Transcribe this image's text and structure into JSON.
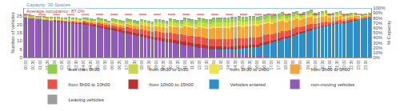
{
  "chart_data": {
    "type": "bar",
    "stacked": true,
    "grid": false,
    "legend": "bottom",
    "y_label": "Number of vehicles",
    "y2_label": "% Capacity",
    "ylim": [
      0,
      30
    ],
    "yticks": [
      0,
      5,
      10,
      15,
      20,
      25
    ],
    "y2lim": [
      0,
      100
    ],
    "y2ticks": [
      {
        "value": 0,
        "label": "0%"
      },
      {
        "value": 10,
        "label": "10%"
      },
      {
        "value": 20,
        "label": "20%"
      },
      {
        "value": 30,
        "label": "30%"
      },
      {
        "value": 40,
        "label": "40%"
      },
      {
        "value": 50,
        "label": "50%"
      },
      {
        "value": 60,
        "label": "60%"
      },
      {
        "value": 70,
        "label": "70%"
      },
      {
        "value": 80,
        "label": "80%"
      },
      {
        "value": 90,
        "label": "90%"
      },
      {
        "value": 100,
        "label": "100%"
      }
    ],
    "annotations": [
      {
        "text": "Capacity: 30 Spaces",
        "y": 30,
        "axis": "y",
        "color": "#4a90d9",
        "line_style": "solid"
      },
      {
        "text": "Average occupancy: 87.0%",
        "y": 87,
        "axis": "y2",
        "color": "#d9342b",
        "line_style": "dashed"
      }
    ],
    "categories": [
      "00:00",
      null,
      "00:30",
      null,
      "01:00",
      null,
      "01:30",
      null,
      "02:00",
      null,
      "02:30",
      null,
      "03:00",
      null,
      "03:30",
      null,
      "04:00",
      null,
      "04:30",
      null,
      "05:00",
      null,
      "05:30",
      null,
      "06:00",
      null,
      "06:30",
      null,
      "07:00",
      null,
      "07:30",
      null,
      "08:00",
      null,
      "08:30",
      null,
      "09:00",
      null,
      "09:30",
      null,
      "10:00",
      null,
      "10:30",
      null,
      "11:00",
      null,
      "11:30",
      null,
      "12:00",
      null,
      "12:30",
      null,
      "13:00",
      null,
      "13:30",
      null,
      "14:00",
      null,
      "14:30",
      null,
      "15:00",
      null,
      "15:30",
      null,
      "16:00",
      null,
      "16:30",
      null,
      "17:00",
      null,
      "17:30",
      null,
      "18:00",
      null,
      "18:30",
      null,
      "19:00",
      null,
      "19:30",
      null,
      "20:00",
      null,
      "20:30",
      null,
      "21:00",
      null,
      "21:30",
      null,
      "22:00",
      null,
      "22:30",
      null,
      "23:00",
      null,
      "23:30",
      null
    ],
    "series": [
      {
        "name": "non-moving vehicles",
        "color": "#8e5bb5",
        "values": [
          24,
          23.8,
          23.6,
          23.3,
          23,
          22.8,
          22.6,
          22.3,
          22,
          21.8,
          21.5,
          21.3,
          21,
          20.8,
          20.5,
          20.3,
          20,
          19.6,
          19.2,
          18.9,
          18.5,
          18,
          17.5,
          17,
          16.5,
          16,
          15.5,
          15,
          14.5,
          14,
          13.5,
          13,
          12.5,
          12,
          11.5,
          11,
          10.5,
          10.2,
          9.8,
          9.4,
          9,
          8.6,
          8.2,
          7.9,
          7.5,
          7.1,
          6.8,
          6.4,
          6,
          5.6,
          5.2,
          4.9,
          4.5,
          4.1,
          3.8,
          3.4,
          3,
          2.8,
          2.5,
          2.3,
          2,
          1.8,
          1.5,
          1.3,
          1,
          0.9,
          0.8,
          0.6,
          0.5,
          0.4,
          0.2,
          0.1,
          0,
          0,
          0,
          0,
          0,
          0,
          0,
          0,
          0,
          0,
          0,
          0,
          0,
          0,
          0,
          0,
          0,
          0,
          0,
          0,
          0,
          0,
          0,
          0
        ]
      },
      {
        "name": "Vehicles entered",
        "color": "#2e8fc8",
        "values": [
          0,
          0,
          0,
          0,
          0,
          0,
          0,
          0,
          0,
          0,
          0,
          0,
          0,
          0,
          0,
          0,
          0,
          0,
          0,
          0,
          0,
          0,
          0,
          0,
          0,
          0,
          0,
          0,
          0,
          0,
          0,
          0,
          0,
          0,
          0,
          0,
          0,
          0,
          0,
          0,
          0,
          0,
          0,
          0,
          0,
          0,
          0,
          0,
          0,
          0,
          0,
          0,
          0.2,
          0.5,
          0.8,
          1.2,
          1.6,
          2,
          2.5,
          3,
          3.5,
          4,
          4.5,
          5,
          5.5,
          6.2,
          7,
          7.8,
          8.5,
          9.2,
          10,
          10.8,
          11.5,
          12.2,
          13,
          13.8,
          14.5,
          15.2,
          16,
          16.6,
          17.2,
          17.8,
          18.3,
          18.8,
          19.3,
          19.8,
          20.2,
          20.6,
          21,
          21.5,
          22,
          22.4,
          22.8,
          23.3,
          23.8,
          24.3
        ]
      },
      {
        "name": "from 10h00 to 15h00",
        "color": "#b8322f",
        "values": [
          0,
          0,
          0,
          0,
          0,
          0,
          0,
          0,
          0.3,
          0.3,
          0.3,
          0.3,
          0.5,
          0.5,
          0.5,
          0.5,
          0.8,
          0.8,
          0.8,
          0.8,
          1,
          1,
          1,
          1,
          1.2,
          1.2,
          1.2,
          1.2,
          1.4,
          1.4,
          1.4,
          1.4,
          1.6,
          1.6,
          1.6,
          1.6,
          1.8,
          1.8,
          1.8,
          1.8,
          2,
          2,
          2,
          2,
          2,
          2,
          2,
          2,
          2,
          2,
          2,
          2,
          2,
          2,
          2,
          2,
          1.8,
          1.8,
          1.8,
          1.8,
          1.6,
          1.6,
          1.6,
          1.6,
          1.4,
          1.4,
          1.4,
          1.4,
          1.2,
          1.2,
          1.2,
          1.2,
          1,
          1,
          1,
          1,
          0.8,
          0.8,
          0.8,
          0.8,
          0.6,
          0.6,
          0.6,
          0.6,
          0.4,
          0.4,
          0.4,
          0.4,
          0.2,
          0.2,
          0.2,
          0.2,
          0.1,
          0.1,
          0.1,
          0.1
        ]
      },
      {
        "name": "from 5h00 to 10h00",
        "color": "#e8534a",
        "values": [
          0,
          0,
          0,
          0,
          0,
          0,
          0,
          0,
          0.3,
          0.3,
          0.3,
          0.3,
          0.5,
          0.5,
          0.5,
          0.5,
          0.8,
          0.8,
          0.8,
          0.8,
          1.2,
          1.2,
          1.2,
          1.2,
          1.8,
          1.8,
          1.8,
          1.8,
          2.4,
          2.4,
          2.4,
          2.4,
          3,
          3,
          3,
          3,
          3.6,
          3.6,
          3.6,
          3.6,
          4,
          4,
          4,
          4,
          4.2,
          4.2,
          4.2,
          4.2,
          4.4,
          4.4,
          4.4,
          4.4,
          4.6,
          4.6,
          4.6,
          4.6,
          4.6,
          4.6,
          4.6,
          4.6,
          4.4,
          4.4,
          4.4,
          4.4,
          4.2,
          4.2,
          4.2,
          4.2,
          3.8,
          3.8,
          3.8,
          3.8,
          3.4,
          3.4,
          3.4,
          3.4,
          3,
          3,
          3,
          3,
          2.4,
          2.4,
          2.4,
          2.4,
          1.8,
          1.8,
          1.8,
          1.8,
          1.2,
          1.2,
          1.2,
          1.2,
          0.5,
          0.5,
          0.5,
          0.5
        ]
      },
      {
        "name": "from 2h00 to 5h00",
        "color": "#f2a33a",
        "values": [
          0.5,
          0.5,
          0.5,
          0.5,
          0.5,
          0.5,
          0.5,
          0.5,
          0.5,
          0.5,
          0.5,
          0.5,
          0.7,
          0.7,
          0.7,
          0.7,
          0.8,
          0.8,
          0.8,
          0.8,
          1,
          1,
          1,
          1,
          1.5,
          1.5,
          1.5,
          1.5,
          2,
          2,
          2,
          2,
          2.6,
          2.6,
          2.6,
          2.6,
          3.2,
          3.2,
          3.2,
          3.2,
          4,
          4,
          4,
          4,
          5,
          5,
          5,
          5,
          6,
          6,
          6,
          6,
          6.5,
          6.5,
          6.5,
          6.5,
          7,
          7,
          7,
          7,
          7,
          7,
          7,
          7,
          7,
          7,
          7,
          7,
          6.5,
          6.5,
          6.5,
          6.5,
          5.5,
          5.5,
          5.5,
          5.5,
          4.5,
          4.5,
          4.5,
          4.5,
          3.5,
          3.5,
          3.5,
          3.5,
          2.5,
          2.5,
          2.5,
          2.5,
          1.5,
          1.5,
          1.5,
          1.5,
          0.6,
          0.6,
          0.6,
          0.6
        ]
      },
      {
        "name": "from 1h30 to 2h00",
        "color": "#f3e14a",
        "values": [
          0,
          0,
          0,
          0,
          0.3,
          0.3,
          0.3,
          0.3,
          0.2,
          0.2,
          0.2,
          0.2,
          0.2,
          0.2,
          0.2,
          0.2,
          0.3,
          0.3,
          0.3,
          0.3,
          0.3,
          0.3,
          0.3,
          0.3,
          0.4,
          0.4,
          0.4,
          0.4,
          0.5,
          0.5,
          0.5,
          0.5,
          0.6,
          0.6,
          0.6,
          0.6,
          0.7,
          0.7,
          0.7,
          0.7,
          0.8,
          0.8,
          0.8,
          0.8,
          0.9,
          0.9,
          0.9,
          0.9,
          1,
          1,
          1,
          1,
          1,
          1,
          1,
          1,
          1,
          1,
          1,
          1,
          1,
          1,
          1,
          1,
          1,
          1,
          1,
          1,
          0.9,
          0.9,
          0.9,
          0.9,
          0.8,
          0.8,
          0.8,
          0.8,
          0.7,
          0.7,
          0.7,
          0.7,
          0.6,
          0.6,
          0.6,
          0.6,
          0.5,
          0.5,
          0.5,
          0.5,
          0.3,
          0.3,
          0.3,
          0.3,
          0.2,
          0.2,
          0.2,
          0.2
        ]
      },
      {
        "name": "from 0h30 to 1h30",
        "color": "#c5d94a",
        "values": [
          0.5,
          0.5,
          0.5,
          0.5,
          0.5,
          0.5,
          0.5,
          0.5,
          0.5,
          0.5,
          0.5,
          0.5,
          0.6,
          0.6,
          0.6,
          0.6,
          0.6,
          0.6,
          0.6,
          0.6,
          0.8,
          0.8,
          0.8,
          0.8,
          1,
          1,
          1,
          1,
          1.2,
          1.2,
          1.2,
          1.2,
          1.4,
          1.4,
          1.4,
          1.4,
          1.6,
          1.6,
          1.6,
          1.6,
          1.8,
          1.8,
          1.8,
          1.8,
          2,
          2,
          2,
          2,
          2.2,
          2.2,
          2.2,
          2.2,
          2.4,
          2.4,
          2.4,
          2.4,
          2.4,
          2.4,
          2.4,
          2.4,
          2.2,
          2.2,
          2.2,
          2.2,
          2,
          2,
          2,
          2,
          1.8,
          1.8,
          1.8,
          1.8,
          1.6,
          1.6,
          1.6,
          1.6,
          1.3,
          1.3,
          1.3,
          1.3,
          1,
          1,
          1,
          1,
          0.8,
          0.8,
          0.8,
          0.8,
          0.6,
          0.6,
          0.6,
          0.6,
          0.4,
          0.4,
          0.4,
          0.4
        ]
      },
      {
        "name": "less than 0h30",
        "color": "#8fcf4f",
        "values": [
          0.5,
          0.5,
          0.5,
          0.5,
          0.5,
          0.5,
          0.5,
          0.5,
          0.5,
          0.5,
          0.5,
          0.5,
          0.5,
          0.5,
          0.5,
          0.5,
          0.6,
          0.6,
          0.6,
          0.6,
          0.7,
          0.7,
          0.7,
          0.7,
          0.8,
          0.8,
          0.8,
          0.8,
          1,
          1,
          1,
          1,
          1.1,
          1.1,
          1.1,
          1.1,
          1.2,
          1.2,
          1.2,
          1.2,
          1.4,
          1.4,
          1.4,
          1.4,
          1.6,
          1.6,
          1.6,
          1.6,
          1.8,
          1.8,
          1.8,
          1.8,
          2,
          2,
          2,
          2,
          2,
          2,
          2,
          2,
          2,
          2,
          2,
          2,
          1.8,
          1.8,
          1.8,
          1.8,
          1.6,
          1.6,
          1.6,
          1.6,
          1.4,
          1.4,
          1.4,
          1.4,
          1.2,
          1.2,
          1.2,
          1.2,
          1,
          1,
          1,
          1,
          0.8,
          0.8,
          0.8,
          0.8,
          0.6,
          0.6,
          0.6,
          0.6,
          0.4,
          0.4,
          0.4,
          0.4
        ]
      },
      {
        "name": "Leaving vehicles",
        "color": "#9e9e9e",
        "values": [
          0.5,
          0.5,
          0.5,
          0.5,
          0.5,
          0.5,
          0.5,
          0.5,
          0.5,
          0.5,
          0.5,
          0.5,
          0.5,
          0.5,
          0.5,
          0.5,
          0.5,
          0.5,
          0.5,
          0.5,
          0.5,
          0.5,
          0.5,
          0.5,
          0.6,
          0.6,
          0.6,
          0.6,
          0.6,
          0.6,
          0.6,
          0.6,
          0.6,
          0.6,
          0.6,
          0.6,
          0.7,
          0.7,
          0.7,
          0.7,
          0.7,
          0.7,
          0.7,
          0.7,
          0.8,
          0.8,
          0.8,
          0.8,
          0.8,
          0.8,
          0.8,
          0.8,
          0.9,
          0.9,
          0.9,
          0.9,
          0.9,
          0.9,
          0.9,
          0.9,
          0.9,
          0.9,
          0.9,
          0.9,
          0.9,
          0.9,
          0.9,
          0.9,
          0.8,
          0.8,
          0.8,
          0.8,
          0.8,
          0.8,
          0.8,
          0.8,
          0.7,
          0.7,
          0.7,
          0.7,
          0.6,
          0.6,
          0.6,
          0.6,
          0.5,
          0.5,
          0.5,
          0.5,
          0.5,
          0.5,
          0.5,
          0.5,
          0.4,
          0.4,
          0.4,
          0.4
        ]
      }
    ]
  }
}
